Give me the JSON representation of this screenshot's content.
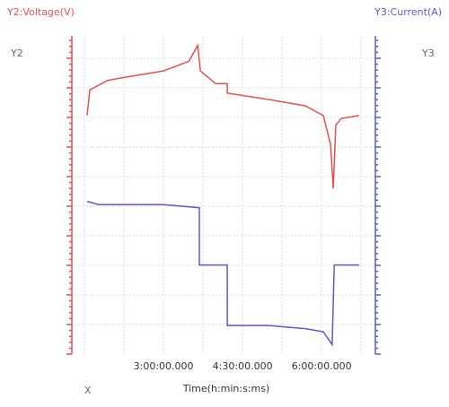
{
  "chart_data": {
    "type": "line",
    "y_label": "Y2:Voltage(V)",
    "y2_label": "Y3:Current(A)",
    "y_axis_name": "Y2",
    "y2_axis_name": "Y3",
    "x_axis_name": "X",
    "x_label": "Time(h:min:s:ms)",
    "xlim": [
      1.26,
      7.02
    ],
    "xticks": [
      {
        "value": 3,
        "label": "3:00:00.000"
      },
      {
        "value": 4.5,
        "label": "4:30:00.000"
      },
      {
        "value": 6,
        "label": "6:00:00.000"
      }
    ],
    "ylim": [
      0,
      100
    ],
    "y2lim": [
      0,
      100
    ],
    "grid": true,
    "series": [
      {
        "name": "Voltage(V)",
        "color": "#e8504f",
        "axis": "y",
        "x": [
          1.55,
          1.6,
          1.94,
          2.28,
          3.0,
          3.48,
          3.65,
          3.7,
          3.99,
          4.21,
          4.21,
          5.0,
          5.69,
          6.03,
          6.17,
          6.22,
          6.27,
          6.37,
          6.71
        ],
        "values": [
          75,
          83,
          86,
          87,
          89,
          92,
          97,
          89,
          85,
          85,
          82,
          80,
          78,
          75,
          66,
          52,
          72,
          74,
          75
        ]
      },
      {
        "name": "Current(A)",
        "color": "#5a5ad6",
        "axis": "y2",
        "x": [
          1.55,
          1.77,
          3.0,
          3.68,
          3.68,
          4.21,
          4.21,
          5.0,
          5.69,
          6.03,
          6.2,
          6.24,
          6.71
        ],
        "values": [
          48,
          47,
          47,
          46,
          28,
          28,
          9,
          9,
          8,
          7,
          3,
          28,
          28
        ]
      }
    ]
  }
}
